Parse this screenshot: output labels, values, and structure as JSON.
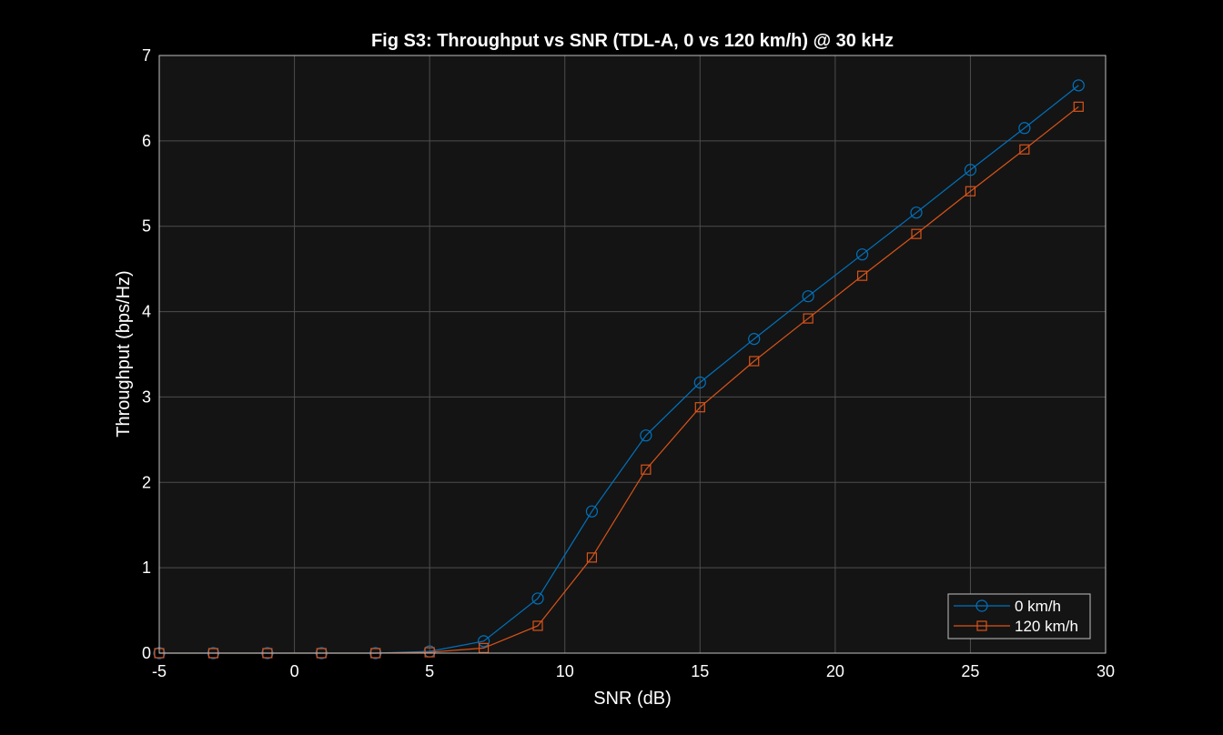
{
  "chart_data": {
    "type": "line",
    "title": "Fig S3: Throughput vs SNR (TDL-A, 0 vs 120 km/h) @ 30 kHz",
    "xlabel": "SNR (dB)",
    "ylabel": "Throughput (bps/Hz)",
    "xlim": [
      -5,
      30
    ],
    "ylim": [
      0,
      7
    ],
    "xticks": [
      -5,
      0,
      5,
      10,
      15,
      20,
      25,
      30
    ],
    "yticks": [
      0,
      1,
      2,
      3,
      4,
      5,
      6,
      7
    ],
    "grid": true,
    "legend_position": "bottom-right",
    "x": [
      -5,
      -3,
      -1,
      1,
      3,
      5,
      7,
      9,
      11,
      13,
      15,
      17,
      19,
      21,
      23,
      25,
      27,
      29
    ],
    "series": [
      {
        "name": "0 km/h",
        "marker": "circle",
        "color": "#0072BD",
        "values": [
          0,
          0,
          0,
          0,
          0,
          0.02,
          0.14,
          0.64,
          1.66,
          2.55,
          3.17,
          3.68,
          4.18,
          4.67,
          5.16,
          5.66,
          6.15,
          6.65
        ]
      },
      {
        "name": "120 km/h",
        "marker": "square",
        "color": "#D95319",
        "values": [
          0,
          0,
          0,
          0,
          0,
          0.01,
          0.06,
          0.32,
          1.12,
          2.15,
          2.88,
          3.42,
          3.92,
          4.42,
          4.91,
          5.41,
          5.9,
          6.4
        ]
      }
    ],
    "colors": {
      "figure_bg": "#000000",
      "axes_bg": "#141414",
      "grid": "#4d4d4d",
      "axis": "#bfbfbf",
      "text": "#ffffff"
    }
  }
}
